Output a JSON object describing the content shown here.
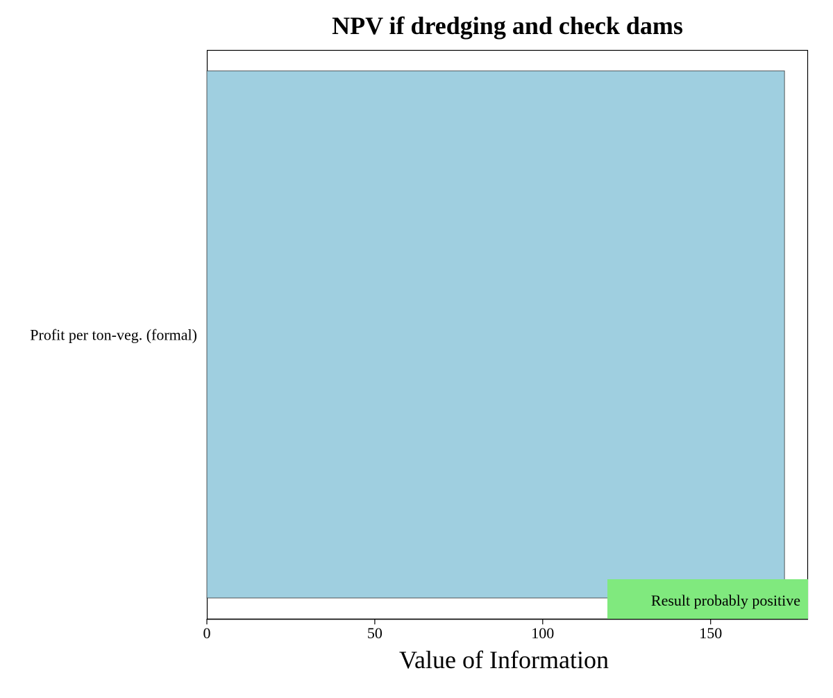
{
  "chart_data": {
    "type": "bar",
    "orientation": "horizontal",
    "title": "NPV if dredging and check dams",
    "xlabel": "Value of Information",
    "ylabel": "",
    "categories": [
      "Profit per ton-veg. (formal)"
    ],
    "values": [
      172
    ],
    "xlim": [
      0,
      179
    ],
    "xticks": [
      0,
      50,
      100,
      150
    ],
    "grid": false,
    "bar_color": "#9fcfe0",
    "legend": {
      "label": "Result probably positive",
      "color": "#80e97e",
      "placement": "bottom-right"
    }
  }
}
